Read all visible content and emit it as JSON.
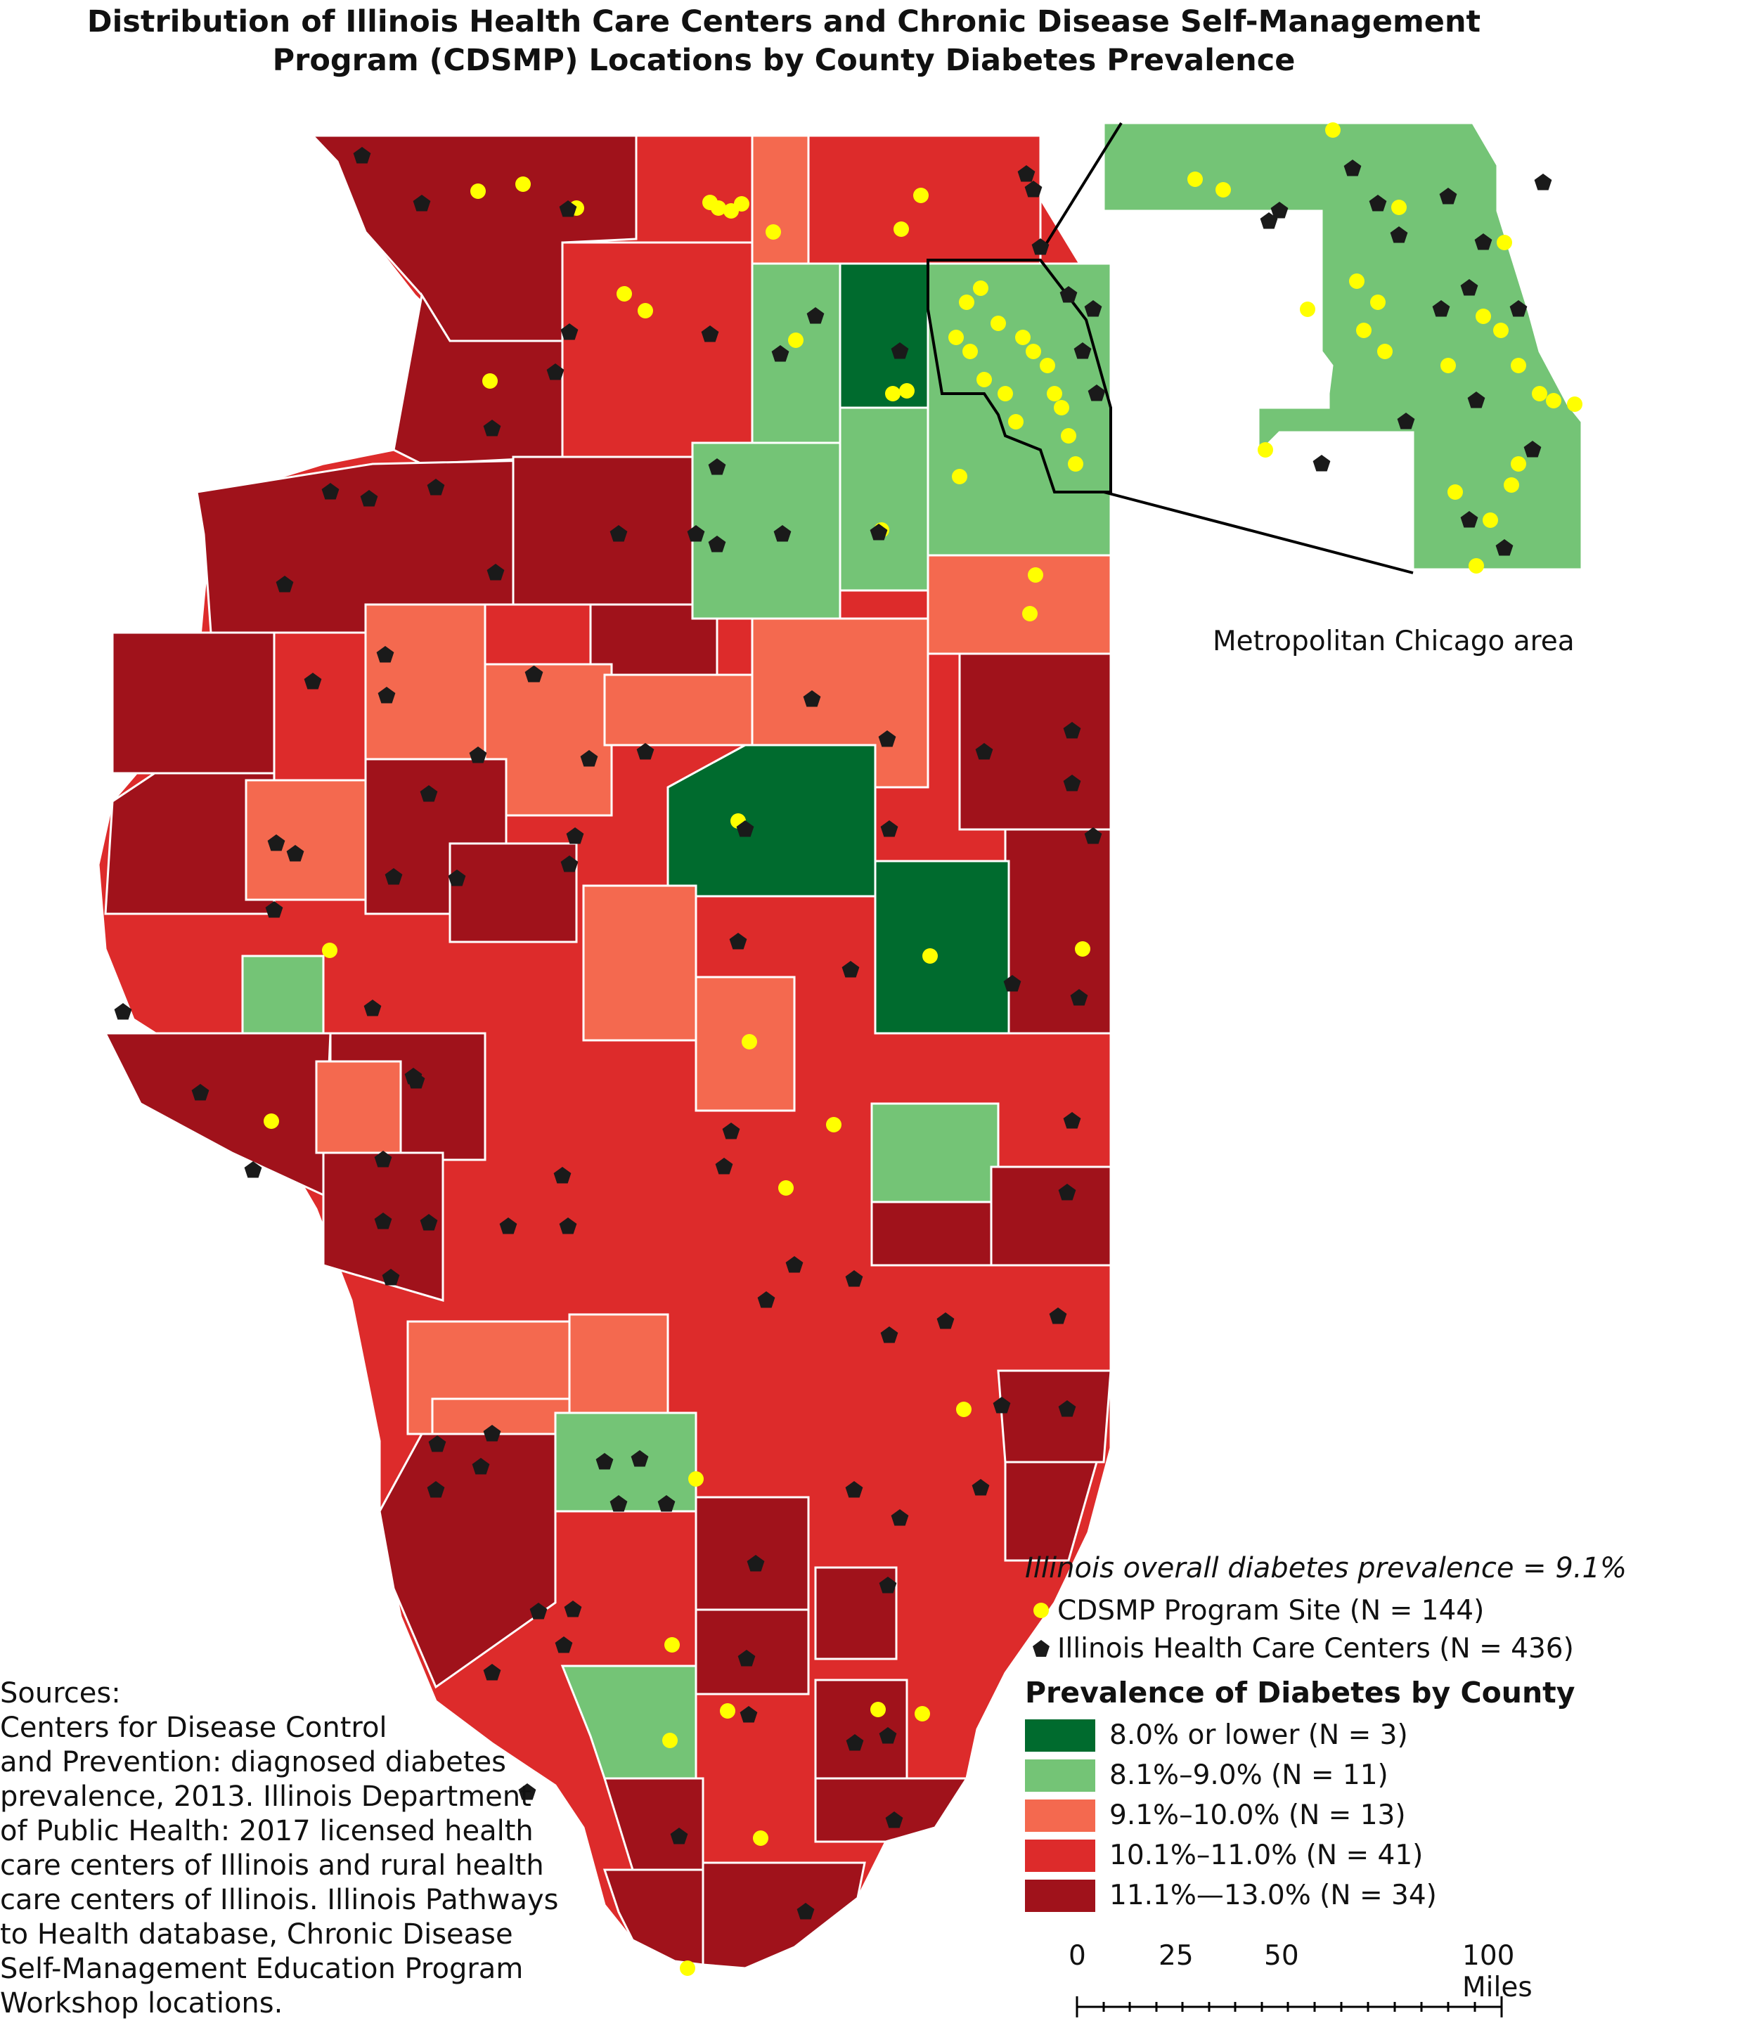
{
  "title_lines": [
    "Distribution of Illinois Health Care Centers and Chronic Disease Self-Management",
    "Program (CDSMP) Locations by County Diabetes Prevalence"
  ],
  "inset_caption": "Metropolitan Chicago area",
  "legend": {
    "overall": "Illinois overall diabetes prevalence = 9.1%",
    "symbols": [
      {
        "icon": "yellow-dot",
        "label": "CDSMP Program Site (N = 144)",
        "color": "#ffff00"
      },
      {
        "icon": "black-pentagon",
        "label": "Illinois Health Care Centers (N = 436)",
        "color": "#1a1a1a"
      }
    ],
    "heading": "Prevalence of Diabetes by County",
    "classes": [
      {
        "label": "8.0% or lower (N = 3)",
        "color": "#006b2e"
      },
      {
        "label": "8.1%–9.0% (N = 11)",
        "color": "#74c476"
      },
      {
        "label": "9.1%–10.0% (N = 13)",
        "color": "#f4694f"
      },
      {
        "label": "10.1%–11.0% (N = 41)",
        "color": "#dd2b2b"
      },
      {
        "label": "11.1%—13.0% (N = 34)",
        "color": "#a0121b"
      }
    ]
  },
  "sources_lines": [
    "Sources:",
    "Centers for Disease Control",
    "and Prevention: diagnosed diabetes",
    "prevalence, 2013. Illinois Department",
    "of Public Health: 2017 licensed health",
    "care centers of Illinois and rural health",
    "care centers of Illinois. Illinois Pathways",
    "to Health database, Chronic Disease",
    "Self-Management Education Program",
    "Workshop locations."
  ],
  "scale_bar": {
    "labels": [
      "0",
      "25",
      "50",
      "100 Miles"
    ]
  }
}
